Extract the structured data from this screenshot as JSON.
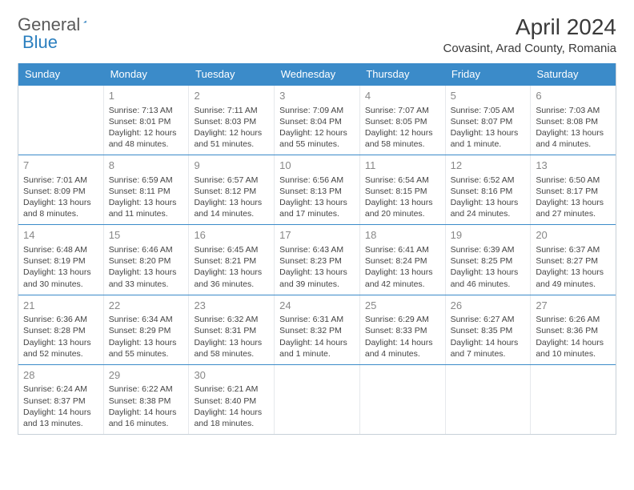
{
  "logo": {
    "general": "General",
    "blue": "Blue"
  },
  "title": "April 2024",
  "location": "Covasint, Arad County, Romania",
  "colors": {
    "header_bg": "#3b8bc9",
    "header_text": "#ffffff",
    "week_divider": "#3b8bc9",
    "cell_border": "#e6e9ec",
    "daynum": "#888888",
    "body_text": "#444444",
    "logo_gray": "#5a5a5a",
    "logo_blue": "#2b7fbf"
  },
  "day_names": [
    "Sunday",
    "Monday",
    "Tuesday",
    "Wednesday",
    "Thursday",
    "Friday",
    "Saturday"
  ],
  "weeks": [
    [
      {
        "day": "",
        "sunrise": "",
        "sunset": "",
        "daylight1": "",
        "daylight2": ""
      },
      {
        "day": "1",
        "sunrise": "Sunrise: 7:13 AM",
        "sunset": "Sunset: 8:01 PM",
        "daylight1": "Daylight: 12 hours",
        "daylight2": "and 48 minutes."
      },
      {
        "day": "2",
        "sunrise": "Sunrise: 7:11 AM",
        "sunset": "Sunset: 8:03 PM",
        "daylight1": "Daylight: 12 hours",
        "daylight2": "and 51 minutes."
      },
      {
        "day": "3",
        "sunrise": "Sunrise: 7:09 AM",
        "sunset": "Sunset: 8:04 PM",
        "daylight1": "Daylight: 12 hours",
        "daylight2": "and 55 minutes."
      },
      {
        "day": "4",
        "sunrise": "Sunrise: 7:07 AM",
        "sunset": "Sunset: 8:05 PM",
        "daylight1": "Daylight: 12 hours",
        "daylight2": "and 58 minutes."
      },
      {
        "day": "5",
        "sunrise": "Sunrise: 7:05 AM",
        "sunset": "Sunset: 8:07 PM",
        "daylight1": "Daylight: 13 hours",
        "daylight2": "and 1 minute."
      },
      {
        "day": "6",
        "sunrise": "Sunrise: 7:03 AM",
        "sunset": "Sunset: 8:08 PM",
        "daylight1": "Daylight: 13 hours",
        "daylight2": "and 4 minutes."
      }
    ],
    [
      {
        "day": "7",
        "sunrise": "Sunrise: 7:01 AM",
        "sunset": "Sunset: 8:09 PM",
        "daylight1": "Daylight: 13 hours",
        "daylight2": "and 8 minutes."
      },
      {
        "day": "8",
        "sunrise": "Sunrise: 6:59 AM",
        "sunset": "Sunset: 8:11 PM",
        "daylight1": "Daylight: 13 hours",
        "daylight2": "and 11 minutes."
      },
      {
        "day": "9",
        "sunrise": "Sunrise: 6:57 AM",
        "sunset": "Sunset: 8:12 PM",
        "daylight1": "Daylight: 13 hours",
        "daylight2": "and 14 minutes."
      },
      {
        "day": "10",
        "sunrise": "Sunrise: 6:56 AM",
        "sunset": "Sunset: 8:13 PM",
        "daylight1": "Daylight: 13 hours",
        "daylight2": "and 17 minutes."
      },
      {
        "day": "11",
        "sunrise": "Sunrise: 6:54 AM",
        "sunset": "Sunset: 8:15 PM",
        "daylight1": "Daylight: 13 hours",
        "daylight2": "and 20 minutes."
      },
      {
        "day": "12",
        "sunrise": "Sunrise: 6:52 AM",
        "sunset": "Sunset: 8:16 PM",
        "daylight1": "Daylight: 13 hours",
        "daylight2": "and 24 minutes."
      },
      {
        "day": "13",
        "sunrise": "Sunrise: 6:50 AM",
        "sunset": "Sunset: 8:17 PM",
        "daylight1": "Daylight: 13 hours",
        "daylight2": "and 27 minutes."
      }
    ],
    [
      {
        "day": "14",
        "sunrise": "Sunrise: 6:48 AM",
        "sunset": "Sunset: 8:19 PM",
        "daylight1": "Daylight: 13 hours",
        "daylight2": "and 30 minutes."
      },
      {
        "day": "15",
        "sunrise": "Sunrise: 6:46 AM",
        "sunset": "Sunset: 8:20 PM",
        "daylight1": "Daylight: 13 hours",
        "daylight2": "and 33 minutes."
      },
      {
        "day": "16",
        "sunrise": "Sunrise: 6:45 AM",
        "sunset": "Sunset: 8:21 PM",
        "daylight1": "Daylight: 13 hours",
        "daylight2": "and 36 minutes."
      },
      {
        "day": "17",
        "sunrise": "Sunrise: 6:43 AM",
        "sunset": "Sunset: 8:23 PM",
        "daylight1": "Daylight: 13 hours",
        "daylight2": "and 39 minutes."
      },
      {
        "day": "18",
        "sunrise": "Sunrise: 6:41 AM",
        "sunset": "Sunset: 8:24 PM",
        "daylight1": "Daylight: 13 hours",
        "daylight2": "and 42 minutes."
      },
      {
        "day": "19",
        "sunrise": "Sunrise: 6:39 AM",
        "sunset": "Sunset: 8:25 PM",
        "daylight1": "Daylight: 13 hours",
        "daylight2": "and 46 minutes."
      },
      {
        "day": "20",
        "sunrise": "Sunrise: 6:37 AM",
        "sunset": "Sunset: 8:27 PM",
        "daylight1": "Daylight: 13 hours",
        "daylight2": "and 49 minutes."
      }
    ],
    [
      {
        "day": "21",
        "sunrise": "Sunrise: 6:36 AM",
        "sunset": "Sunset: 8:28 PM",
        "daylight1": "Daylight: 13 hours",
        "daylight2": "and 52 minutes."
      },
      {
        "day": "22",
        "sunrise": "Sunrise: 6:34 AM",
        "sunset": "Sunset: 8:29 PM",
        "daylight1": "Daylight: 13 hours",
        "daylight2": "and 55 minutes."
      },
      {
        "day": "23",
        "sunrise": "Sunrise: 6:32 AM",
        "sunset": "Sunset: 8:31 PM",
        "daylight1": "Daylight: 13 hours",
        "daylight2": "and 58 minutes."
      },
      {
        "day": "24",
        "sunrise": "Sunrise: 6:31 AM",
        "sunset": "Sunset: 8:32 PM",
        "daylight1": "Daylight: 14 hours",
        "daylight2": "and 1 minute."
      },
      {
        "day": "25",
        "sunrise": "Sunrise: 6:29 AM",
        "sunset": "Sunset: 8:33 PM",
        "daylight1": "Daylight: 14 hours",
        "daylight2": "and 4 minutes."
      },
      {
        "day": "26",
        "sunrise": "Sunrise: 6:27 AM",
        "sunset": "Sunset: 8:35 PM",
        "daylight1": "Daylight: 14 hours",
        "daylight2": "and 7 minutes."
      },
      {
        "day": "27",
        "sunrise": "Sunrise: 6:26 AM",
        "sunset": "Sunset: 8:36 PM",
        "daylight1": "Daylight: 14 hours",
        "daylight2": "and 10 minutes."
      }
    ],
    [
      {
        "day": "28",
        "sunrise": "Sunrise: 6:24 AM",
        "sunset": "Sunset: 8:37 PM",
        "daylight1": "Daylight: 14 hours",
        "daylight2": "and 13 minutes."
      },
      {
        "day": "29",
        "sunrise": "Sunrise: 6:22 AM",
        "sunset": "Sunset: 8:38 PM",
        "daylight1": "Daylight: 14 hours",
        "daylight2": "and 16 minutes."
      },
      {
        "day": "30",
        "sunrise": "Sunrise: 6:21 AM",
        "sunset": "Sunset: 8:40 PM",
        "daylight1": "Daylight: 14 hours",
        "daylight2": "and 18 minutes."
      },
      {
        "day": "",
        "sunrise": "",
        "sunset": "",
        "daylight1": "",
        "daylight2": ""
      },
      {
        "day": "",
        "sunrise": "",
        "sunset": "",
        "daylight1": "",
        "daylight2": ""
      },
      {
        "day": "",
        "sunrise": "",
        "sunset": "",
        "daylight1": "",
        "daylight2": ""
      },
      {
        "day": "",
        "sunrise": "",
        "sunset": "",
        "daylight1": "",
        "daylight2": ""
      }
    ]
  ]
}
